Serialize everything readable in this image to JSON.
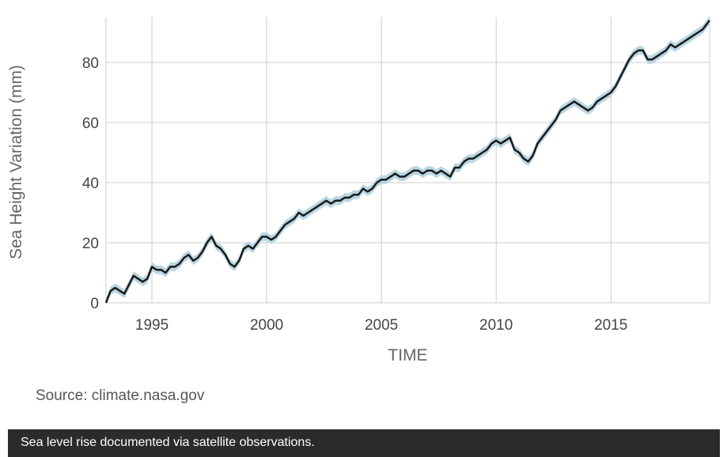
{
  "chart_data": {
    "type": "line",
    "title": "",
    "xlabel": "TIME",
    "ylabel": "Sea Height Variation (mm)",
    "xlim": [
      1993.0,
      2019.3
    ],
    "ylim": [
      0,
      95
    ],
    "x_ticks": [
      1995,
      2000,
      2005,
      2010,
      2015
    ],
    "y_ticks": [
      0,
      20,
      40,
      60,
      80
    ],
    "grid": true,
    "colors": {
      "line": "#1a1a1a",
      "band": "#b9d6e2",
      "grid": "#cccccc"
    },
    "series": [
      {
        "x": [
          1993.0,
          1993.2,
          1993.4,
          1993.6,
          1993.8,
          1994.0,
          1994.2,
          1994.4,
          1994.6,
          1994.8,
          1995.0,
          1995.2,
          1995.4,
          1995.6,
          1995.8,
          1996.0,
          1996.2,
          1996.4,
          1996.6,
          1996.8,
          1997.0,
          1997.2,
          1997.4,
          1997.6,
          1997.8,
          1998.0,
          1998.2,
          1998.4,
          1998.6,
          1998.8,
          1999.0,
          1999.2,
          1999.4,
          1999.6,
          1999.8,
          2000.0,
          2000.2,
          2000.4,
          2000.6,
          2000.8,
          2001.0,
          2001.2,
          2001.4,
          2001.6,
          2001.8,
          2002.0,
          2002.2,
          2002.4,
          2002.6,
          2002.8,
          2003.0,
          2003.2,
          2003.4,
          2003.6,
          2003.8,
          2004.0,
          2004.2,
          2004.4,
          2004.6,
          2004.8,
          2005.0,
          2005.2,
          2005.4,
          2005.6,
          2005.8,
          2006.0,
          2006.2,
          2006.4,
          2006.6,
          2006.8,
          2007.0,
          2007.2,
          2007.4,
          2007.6,
          2007.8,
          2008.0,
          2008.2,
          2008.4,
          2008.6,
          2008.8,
          2009.0,
          2009.2,
          2009.4,
          2009.6,
          2009.8,
          2010.0,
          2010.2,
          2010.4,
          2010.6,
          2010.8,
          2011.0,
          2011.2,
          2011.4,
          2011.6,
          2011.8,
          2012.0,
          2012.2,
          2012.4,
          2012.6,
          2012.8,
          2013.0,
          2013.2,
          2013.4,
          2013.6,
          2013.8,
          2014.0,
          2014.2,
          2014.4,
          2014.6,
          2014.8,
          2015.0,
          2015.2,
          2015.4,
          2015.6,
          2015.8,
          2016.0,
          2016.2,
          2016.4,
          2016.6,
          2016.8,
          2017.0,
          2017.2,
          2017.4,
          2017.6,
          2017.8,
          2018.0,
          2018.2,
          2018.4,
          2018.6,
          2018.8,
          2019.0,
          2019.3
        ],
        "values": [
          0,
          4,
          5,
          4,
          3,
          6,
          9,
          8,
          7,
          8,
          12,
          11,
          11,
          10,
          12,
          12,
          13,
          15,
          16,
          14,
          15,
          17,
          20,
          22,
          19,
          18,
          16,
          13,
          12,
          14,
          18,
          19,
          18,
          20,
          22,
          22,
          21,
          22,
          24,
          26,
          27,
          28,
          30,
          29,
          30,
          31,
          32,
          33,
          34,
          33,
          34,
          34,
          35,
          35,
          36,
          36,
          38,
          37,
          38,
          40,
          41,
          41,
          42,
          43,
          42,
          42,
          43,
          44,
          44,
          43,
          44,
          44,
          43,
          44,
          43,
          42,
          45,
          45,
          47,
          48,
          48,
          49,
          50,
          51,
          53,
          54,
          53,
          54,
          55,
          51,
          50,
          48,
          47,
          49,
          53,
          55,
          57,
          59,
          61,
          64,
          65,
          66,
          67,
          66,
          65,
          64,
          65,
          67,
          68,
          69,
          70,
          72,
          75,
          78,
          81,
          83,
          84,
          84,
          81,
          81,
          82,
          83,
          84,
          86,
          85,
          86,
          87,
          88,
          89,
          90,
          91,
          94
        ]
      }
    ]
  },
  "source_text": "Source: climate.nasa.gov",
  "caption": "Sea level rise documented via satellite observations."
}
